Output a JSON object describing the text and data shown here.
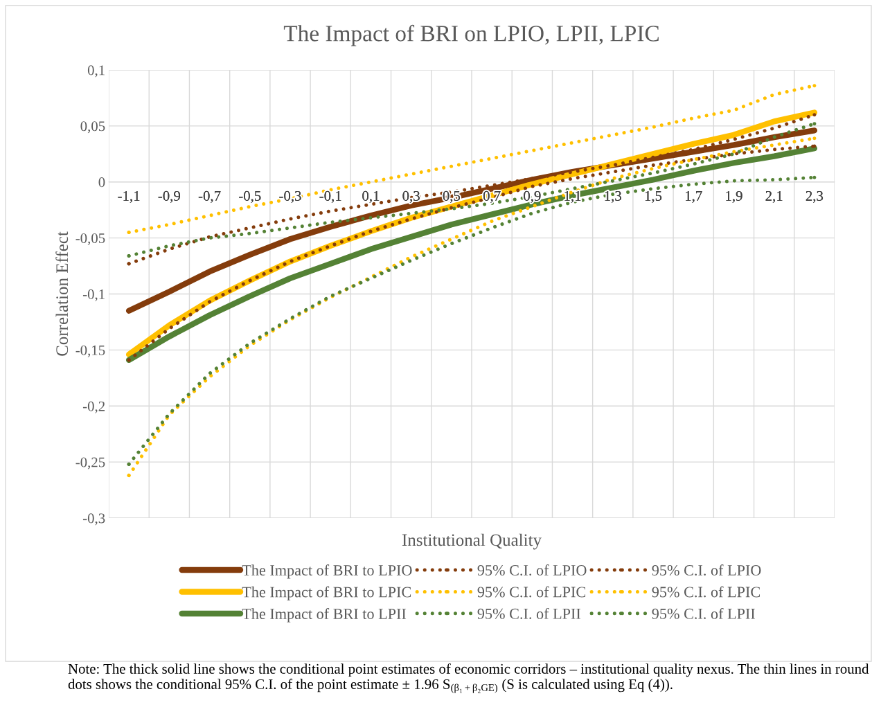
{
  "chart_data": {
    "type": "line",
    "title": "The Impact of BRI on LPIO, LPII, LPIC",
    "xlabel": "Institutional Quality",
    "ylabel": "Correlation Effect",
    "categories": [
      "-1,1",
      "-0,9",
      "-0,7",
      "-0,5",
      "-0,3",
      "-0,1",
      "0,1",
      "0,3",
      "0,5",
      "0,7",
      "0,9",
      "1,1",
      "1,3",
      "1,5",
      "1,7",
      "1,9",
      "2,1",
      "2,3"
    ],
    "ylim": [
      -0.3,
      0.1
    ],
    "yticks": [
      {
        "value": -0.3,
        "label": "-0,3"
      },
      {
        "value": -0.25,
        "label": "-0,25"
      },
      {
        "value": -0.2,
        "label": "-0,2"
      },
      {
        "value": -0.15,
        "label": "-0,15"
      },
      {
        "value": -0.1,
        "label": "-0,1"
      },
      {
        "value": -0.05,
        "label": "-0,05"
      },
      0,
      {
        "value": 0.05,
        "label": "0,05"
      },
      {
        "value": 0.1,
        "label": "0,1"
      }
    ],
    "grid": true,
    "legend": "bottom",
    "marker": "none",
    "series": [
      {
        "name": "The Impact of BRI to LPIO",
        "color": "#843c0c",
        "line_style": "solid",
        "values": [
          -0.115,
          -0.098,
          -0.08,
          -0.065,
          -0.051,
          -0.04,
          -0.03,
          -0.021,
          -0.014,
          -0.006,
          0.002,
          0.009,
          0.015,
          0.021,
          0.027,
          0.033,
          0.04,
          0.046
        ]
      },
      {
        "name": "95% C.I. of LPIO",
        "color": "#843c0c",
        "line_style": "dotted",
        "values": [
          -0.073,
          -0.06,
          -0.049,
          -0.041,
          -0.033,
          -0.026,
          -0.02,
          -0.014,
          -0.009,
          -0.003,
          0.003,
          0.009,
          0.015,
          0.022,
          0.029,
          0.038,
          0.048,
          0.06
        ]
      },
      {
        "name": "95% C.I. of LPIO",
        "color": "#843c0c",
        "line_style": "dotted",
        "values": [
          -0.159,
          -0.131,
          -0.107,
          -0.088,
          -0.071,
          -0.057,
          -0.044,
          -0.033,
          -0.023,
          -0.014,
          -0.004,
          0.003,
          0.009,
          0.015,
          0.02,
          0.025,
          0.029,
          0.032
        ]
      },
      {
        "name": "The Impact of BRI to LPIC",
        "color": "#ffc000",
        "line_style": "solid",
        "values": [
          -0.154,
          -0.128,
          -0.106,
          -0.088,
          -0.071,
          -0.057,
          -0.044,
          -0.032,
          -0.022,
          -0.012,
          -0.002,
          0.007,
          0.016,
          0.025,
          0.034,
          0.042,
          0.054,
          0.062
        ]
      },
      {
        "name": "95% C.I. of LPIC",
        "color": "#ffc000",
        "line_style": "dotted",
        "values": [
          -0.045,
          -0.038,
          -0.03,
          -0.022,
          -0.015,
          -0.007,
          0.0,
          0.007,
          0.014,
          0.021,
          0.028,
          0.035,
          0.042,
          0.049,
          0.057,
          0.064,
          0.078,
          0.086
        ]
      },
      {
        "name": "95% C.I. of LPIC",
        "color": "#ffc000",
        "line_style": "dotted",
        "values": [
          -0.262,
          -0.208,
          -0.174,
          -0.146,
          -0.123,
          -0.103,
          -0.085,
          -0.067,
          -0.051,
          -0.035,
          -0.022,
          -0.009,
          0.003,
          0.012,
          0.02,
          0.027,
          0.033,
          0.039
        ]
      },
      {
        "name": "The Impact of BRI to LPII",
        "color": "#548235",
        "line_style": "solid",
        "values": [
          -0.159,
          -0.138,
          -0.119,
          -0.102,
          -0.086,
          -0.073,
          -0.06,
          -0.049,
          -0.038,
          -0.029,
          -0.02,
          -0.012,
          -0.005,
          0.002,
          0.01,
          0.017,
          0.023,
          0.03
        ]
      },
      {
        "name": "95% C.I. of LPII",
        "color": "#548235",
        "line_style": "dotted",
        "values": [
          -0.066,
          -0.057,
          -0.05,
          -0.046,
          -0.041,
          -0.036,
          -0.032,
          -0.028,
          -0.024,
          -0.019,
          -0.013,
          -0.006,
          0.001,
          0.008,
          0.016,
          0.025,
          0.04,
          0.052
        ]
      },
      {
        "name": "95% C.I. of LPII",
        "color": "#548235",
        "line_style": "dotted",
        "values": [
          -0.252,
          -0.207,
          -0.171,
          -0.144,
          -0.122,
          -0.102,
          -0.086,
          -0.07,
          -0.055,
          -0.041,
          -0.028,
          -0.018,
          -0.011,
          -0.006,
          -0.002,
          0.001,
          0.002,
          0.004
        ]
      }
    ],
    "annotations": [
      "Note: The thick solid line shows the conditional point estimates of economic corridors – institutional quality nexus. The thin lines in round dots shows the conditional 95% C.I. of the point estimate ± 1.96 S$_{(β₁+β₂GE)}$ (S is calculated using Eq (4))."
    ]
  }
}
